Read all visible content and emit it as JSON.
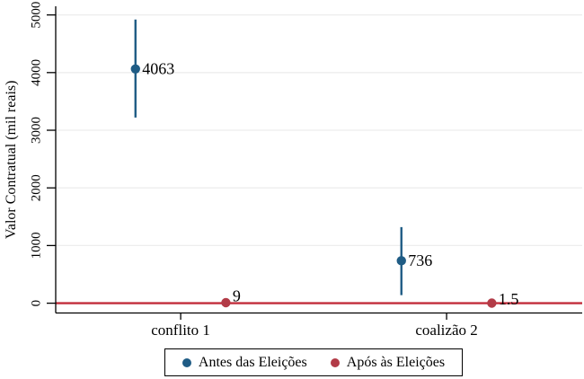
{
  "chart_data": {
    "type": "scatter",
    "title": "",
    "xlabel": "",
    "ylabel": "Valor Contratual (mil reais)",
    "y_ticks": [
      0,
      1000,
      2000,
      3000,
      4000,
      5000
    ],
    "y_tick_labels": [
      "0",
      "1000",
      "2000",
      "3000",
      "4000",
      "5000"
    ],
    "y_range": [
      -170,
      5150
    ],
    "x_range": [
      0.53,
      2.51
    ],
    "grid": true,
    "colors": {
      "navy": "#1f5c85",
      "maroon": "#b23b47",
      "refline": "#c22d3b",
      "gridline": "#ededed",
      "axis": "#000000"
    },
    "categories": [
      {
        "label": "conflito 1",
        "x": 1
      },
      {
        "label": "coalizão 2",
        "x": 2
      }
    ],
    "refline": {
      "y": 0
    },
    "series": [
      {
        "name": "Antes das Eleições",
        "color": "#1f5c85",
        "x_offset": -0.17,
        "points": [
          {
            "x": 1,
            "y": 4063,
            "ci_low": 3220,
            "ci_high": 4920,
            "label": "4063",
            "label_dy": 0
          },
          {
            "x": 2,
            "y": 736,
            "ci_low": 140,
            "ci_high": 1320,
            "label": "736",
            "label_dy": 0
          }
        ]
      },
      {
        "name": "Após às Eleições",
        "color": "#b23b47",
        "x_offset": 0.17,
        "points": [
          {
            "x": 1,
            "y": 9,
            "ci_low": 9,
            "ci_high": 9,
            "label": "9",
            "label_dy": -7
          },
          {
            "x": 2,
            "y": 1.5,
            "ci_low": 1.5,
            "ci_high": 1.5,
            "label": "1.5",
            "label_dy": -4
          }
        ]
      }
    ],
    "legend": {
      "position": "bottom"
    }
  }
}
